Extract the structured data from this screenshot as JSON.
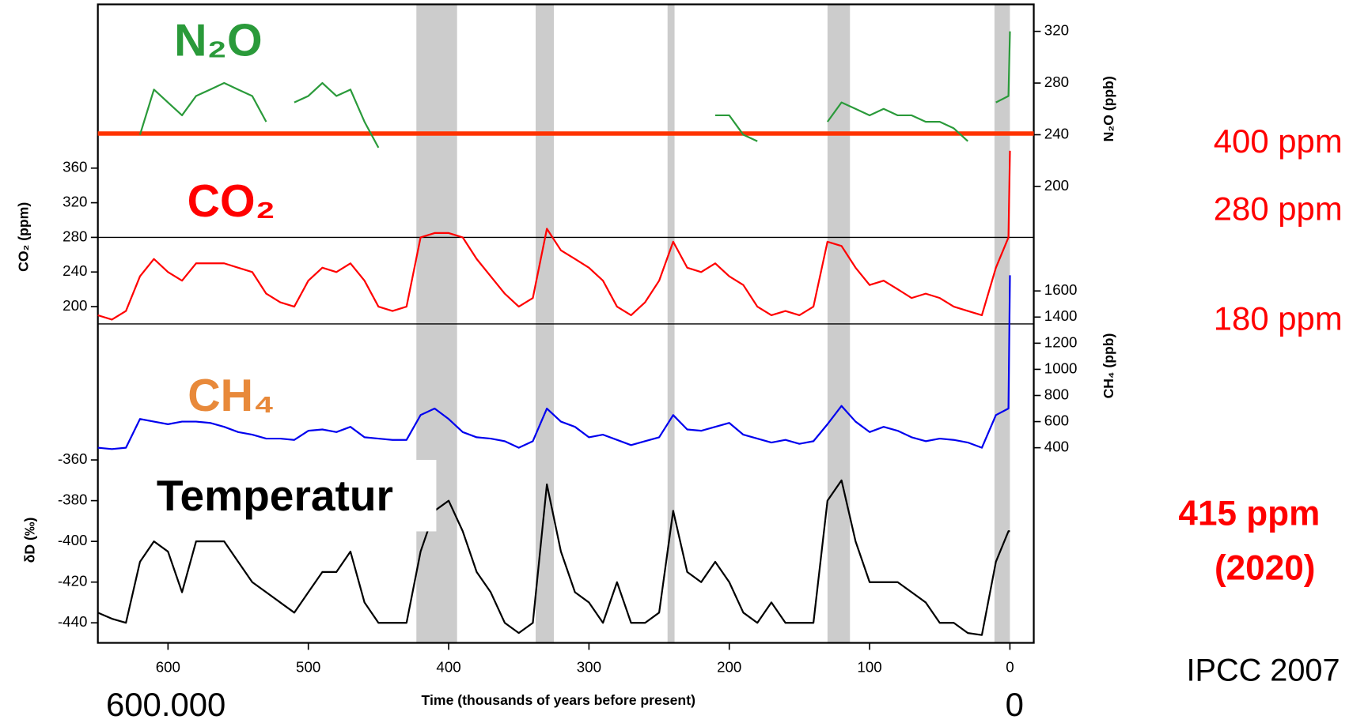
{
  "chart_data": {
    "type": "line",
    "xlabel": "Time (thousands of years before present)",
    "xlim": [
      650,
      -17
    ],
    "xticks": [
      600,
      500,
      400,
      300,
      200,
      100,
      0
    ],
    "x": [
      650,
      640,
      630,
      620,
      610,
      600,
      590,
      580,
      570,
      560,
      550,
      540,
      530,
      520,
      510,
      500,
      490,
      480,
      470,
      460,
      450,
      440,
      430,
      420,
      410,
      400,
      390,
      380,
      370,
      360,
      350,
      340,
      330,
      320,
      310,
      300,
      290,
      280,
      270,
      260,
      250,
      240,
      230,
      220,
      210,
      200,
      190,
      180,
      170,
      160,
      150,
      140,
      130,
      120,
      110,
      100,
      90,
      80,
      70,
      60,
      50,
      40,
      30,
      20,
      10,
      1,
      0
    ],
    "interglacials": [
      [
        423,
        394
      ],
      [
        338,
        325
      ],
      [
        244,
        239
      ],
      [
        130,
        114
      ],
      [
        11,
        0
      ]
    ],
    "series": [
      {
        "name": "N₂O (ppb)",
        "label": "N₂O",
        "color": "#2a9a3a",
        "axis": "right",
        "ylim": [
          200,
          320
        ],
        "yticks": [
          200,
          240,
          280,
          320
        ],
        "values": [
          null,
          null,
          null,
          240,
          275,
          265,
          255,
          270,
          275,
          280,
          275,
          270,
          250,
          null,
          265,
          270,
          280,
          270,
          275,
          250,
          230,
          null,
          null,
          null,
          null,
          null,
          null,
          null,
          null,
          null,
          null,
          null,
          null,
          null,
          null,
          null,
          null,
          null,
          null,
          null,
          null,
          null,
          null,
          null,
          255,
          255,
          240,
          235,
          null,
          null,
          null,
          null,
          250,
          265,
          260,
          255,
          260,
          255,
          255,
          250,
          250,
          245,
          235,
          null,
          265,
          270,
          320
        ]
      },
      {
        "name": "CO₂ (ppm)",
        "label": "CO₂",
        "color": "#ff0000",
        "axis": "left",
        "ylim": [
          200,
          360
        ],
        "yticks": [
          200,
          240,
          280,
          320,
          360
        ],
        "values": [
          190,
          185,
          195,
          235,
          255,
          240,
          230,
          250,
          250,
          250,
          245,
          240,
          215,
          205,
          200,
          230,
          245,
          240,
          250,
          230,
          200,
          195,
          200,
          280,
          285,
          285,
          280,
          255,
          235,
          215,
          200,
          210,
          290,
          265,
          255,
          245,
          230,
          200,
          190,
          205,
          230,
          275,
          245,
          240,
          250,
          235,
          225,
          200,
          190,
          195,
          190,
          200,
          275,
          270,
          245,
          225,
          230,
          220,
          210,
          215,
          210,
          200,
          195,
          190,
          245,
          280,
          380
        ]
      },
      {
        "name": "CH₄ (ppb)",
        "label": "CH₄",
        "color": "#0000ee",
        "axis": "right",
        "ylim": [
          400,
          1600
        ],
        "yticks": [
          400,
          600,
          800,
          1000,
          1200,
          1400,
          1600
        ],
        "values": [
          400,
          390,
          400,
          620,
          600,
          580,
          600,
          600,
          590,
          560,
          520,
          500,
          470,
          470,
          460,
          530,
          540,
          520,
          560,
          480,
          470,
          460,
          460,
          650,
          700,
          620,
          520,
          480,
          470,
          450,
          400,
          450,
          700,
          600,
          560,
          480,
          500,
          460,
          420,
          450,
          480,
          650,
          540,
          530,
          560,
          590,
          500,
          470,
          440,
          460,
          430,
          450,
          580,
          720,
          600,
          520,
          560,
          530,
          480,
          450,
          470,
          460,
          440,
          400,
          650,
          700,
          1720
        ]
      },
      {
        "name": "δD (‰)",
        "label": "Temperatur",
        "color": "#000000",
        "axis": "left",
        "ylim": [
          -440,
          -360
        ],
        "yticks": [
          -440,
          -420,
          -400,
          -380,
          -360
        ],
        "values": [
          -435,
          -438,
          -440,
          -410,
          -400,
          -405,
          -425,
          -400,
          -400,
          -400,
          -410,
          -420,
          -425,
          -430,
          -435,
          -425,
          -415,
          -415,
          -405,
          -430,
          -440,
          -440,
          -440,
          -405,
          -385,
          -380,
          -395,
          -415,
          -425,
          -440,
          -445,
          -440,
          -372,
          -405,
          -425,
          -430,
          -440,
          -420,
          -440,
          -440,
          -435,
          -385,
          -415,
          -420,
          -410,
          -420,
          -435,
          -440,
          -430,
          -440,
          -440,
          -440,
          -380,
          -370,
          -400,
          -420,
          -420,
          -420,
          -425,
          -430,
          -440,
          -440,
          -445,
          -446,
          -410,
          -395,
          -395
        ]
      }
    ],
    "reference_lines": [
      {
        "value": 400,
        "label": "400 ppm",
        "color": "#ff3300"
      },
      {
        "value": 280,
        "label": "280 ppm",
        "color": "#000000"
      },
      {
        "value": 180,
        "label": "180 ppm",
        "color": "#000000"
      }
    ],
    "annotations": [
      "415 ppm",
      "(2020)",
      "IPCC 2007",
      "600.000",
      "0"
    ]
  }
}
